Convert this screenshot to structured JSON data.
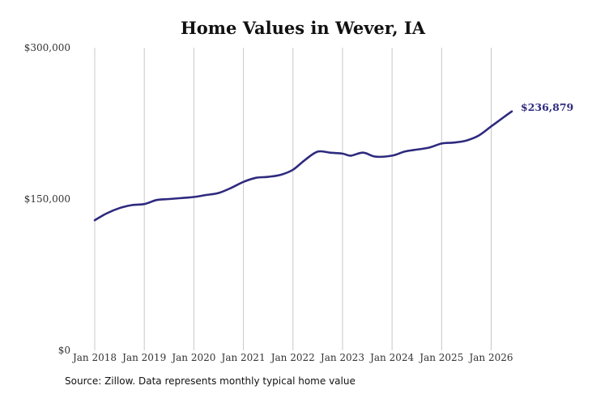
{
  "chart_data": {
    "type": "line",
    "title": "Home Values in Wever, IA",
    "xlabel": "",
    "ylabel": "",
    "ylim": [
      0,
      300000
    ],
    "y_ticks": [
      0,
      150000,
      300000
    ],
    "y_tick_labels": [
      "$0",
      "$150,000",
      "$300,000"
    ],
    "x_ticks": [
      2018,
      2019,
      2020,
      2021,
      2022,
      2023,
      2024,
      2025,
      2026
    ],
    "x_tick_labels": [
      "Jan 2018",
      "Jan 2019",
      "Jan 2020",
      "Jan 2021",
      "Jan 2022",
      "Jan 2023",
      "Jan 2024",
      "Jan 2025",
      "Jan 2026"
    ],
    "grid": "vertical",
    "series": [
      {
        "color": "#2e2a7e",
        "x": [
          "Jan 2018",
          "Apr 2018",
          "Jul 2018",
          "Oct 2018",
          "Jan 2019",
          "Apr 2019",
          "Jul 2019",
          "Oct 2019",
          "Jan 2020",
          "Apr 2020",
          "Jul 2020",
          "Oct 2020",
          "Jan 2021",
          "Apr 2021",
          "Jul 2021",
          "Oct 2021",
          "Jan 2022",
          "Apr 2022",
          "Jul 2022",
          "Oct 2022",
          "Jan 2023",
          "Mar 2023",
          "Jun 2023",
          "Sep 2023",
          "Jan 2024",
          "Apr 2024",
          "Jul 2024",
          "Oct 2024",
          "Jan 2025",
          "Apr 2025",
          "Jul 2025",
          "Oct 2025",
          "Jan 2026",
          "Apr 2026",
          "Jun 2026"
        ],
        "values": [
          129000,
          136000,
          141000,
          144000,
          145000,
          149000,
          150000,
          151000,
          152000,
          154000,
          156000,
          161000,
          167000,
          171000,
          172000,
          174000,
          179000,
          189000,
          197000,
          196000,
          195000,
          193000,
          196000,
          192000,
          193000,
          197000,
          199000,
          201000,
          205000,
          206000,
          208000,
          213000,
          222000,
          231000,
          236879
        ]
      }
    ],
    "end_label": "$236,879"
  },
  "source": "Source: Zillow. Data represents monthly typical home value"
}
